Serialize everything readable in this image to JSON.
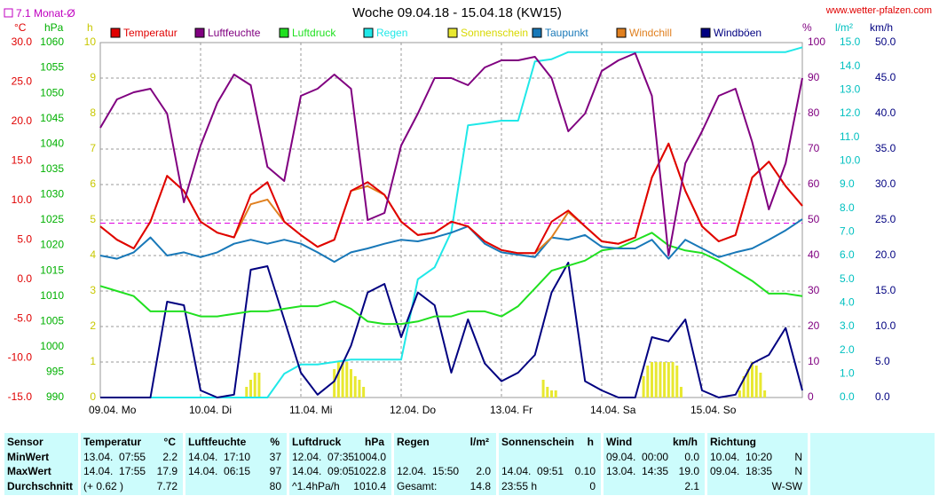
{
  "chart_data": {
    "type": "line",
    "title": "Woche 09.04.18 - 15.04.18 (KW15)",
    "source": "www.wetter-pfalzen.com",
    "monthly_average": {
      "value": 7.1,
      "label": "7.1 Monat-Ø",
      "color": "#e000e0",
      "axis": 0
    },
    "xlim": [
      0,
      168
    ],
    "xticks": [
      {
        "value": 0,
        "label": "09.04. Mo"
      },
      {
        "value": 24,
        "label": "10.04. Di"
      },
      {
        "value": 48,
        "label": "11.04. Mi"
      },
      {
        "value": 72,
        "label": "12.04. Do"
      },
      {
        "value": 96,
        "label": "13.04. Fr"
      },
      {
        "value": 120,
        "label": "14.04. Sa"
      },
      {
        "value": 144,
        "label": "15.04. So"
      }
    ],
    "axes": [
      {
        "unit": "°C",
        "side": "left",
        "color": "#e00000",
        "lim": [
          -15,
          30
        ],
        "ticks": [
          {
            "value": -15,
            "label": "-15.0"
          },
          {
            "value": -10,
            "label": "-10.0"
          },
          {
            "value": -5,
            "label": "-5.0"
          },
          {
            "value": 0,
            "label": "0.0"
          },
          {
            "value": 5,
            "label": "5.0"
          },
          {
            "value": 10,
            "label": "10.0"
          },
          {
            "value": 15,
            "label": "15.0"
          },
          {
            "value": 20,
            "label": "20.0"
          },
          {
            "value": 25,
            "label": "25.0"
          },
          {
            "value": 30,
            "label": "30.0"
          }
        ]
      },
      {
        "unit": "hPa",
        "side": "left",
        "color": "#00b000",
        "lim": [
          990,
          1060
        ],
        "ticks": [
          990,
          995,
          1000,
          1005,
          1010,
          1015,
          1020,
          1025,
          1030,
          1035,
          1040,
          1045,
          1050,
          1055,
          1060
        ]
      },
      {
        "unit": "h",
        "side": "left",
        "color": "#c8c800",
        "lim": [
          0,
          10
        ],
        "ticks": [
          0,
          1,
          2,
          3,
          4,
          5,
          6,
          7,
          8,
          9,
          10
        ]
      },
      {
        "unit": "%",
        "side": "right",
        "color": "#800080",
        "grid": true,
        "lim": [
          0,
          100
        ],
        "ticks": [
          0,
          10,
          20,
          30,
          40,
          50,
          60,
          70,
          80,
          90,
          100
        ]
      },
      {
        "unit": "l/m²",
        "side": "right",
        "color": "#00c0c0",
        "lim": [
          0,
          15
        ],
        "ticks": [
          {
            "value": 0,
            "label": "0.0"
          },
          {
            "value": 1,
            "label": "1.0"
          },
          {
            "value": 2,
            "label": "2.0"
          },
          {
            "value": 3,
            "label": "3.0"
          },
          {
            "value": 4,
            "label": "4.0"
          },
          {
            "value": 5,
            "label": "5.0"
          },
          {
            "value": 6,
            "label": "6.0"
          },
          {
            "value": 7,
            "label": "7.0"
          },
          {
            "value": 8,
            "label": "8.0"
          },
          {
            "value": 9,
            "label": "9.0"
          },
          {
            "value": 10,
            "label": "10.0"
          },
          {
            "value": 11,
            "label": "11.0"
          },
          {
            "value": 12,
            "label": "12.0"
          },
          {
            "value": 13,
            "label": "13.0"
          },
          {
            "value": 14,
            "label": "14.0"
          },
          {
            "value": 15,
            "label": "15.0"
          }
        ]
      },
      {
        "unit": "km/h",
        "side": "right",
        "color": "#000080",
        "lim": [
          0,
          50
        ],
        "ticks": [
          {
            "value": 0,
            "label": "0.0"
          },
          {
            "value": 5,
            "label": "5.0"
          },
          {
            "value": 10,
            "label": "10.0"
          },
          {
            "value": 15,
            "label": "15.0"
          },
          {
            "value": 20,
            "label": "20.0"
          },
          {
            "value": 25,
            "label": "25.0"
          },
          {
            "value": 30,
            "label": "30.0"
          },
          {
            "value": 35,
            "label": "35.0"
          },
          {
            "value": 40,
            "label": "40.0"
          },
          {
            "value": 45,
            "label": "45.0"
          },
          {
            "value": 50,
            "label": "50.0"
          }
        ]
      }
    ],
    "x": [
      0,
      4,
      8,
      12,
      16,
      20,
      24,
      28,
      32,
      36,
      40,
      44,
      48,
      52,
      56,
      60,
      64,
      68,
      72,
      76,
      80,
      84,
      88,
      92,
      96,
      100,
      104,
      108,
      112,
      116,
      120,
      124,
      128,
      132,
      136,
      140,
      144,
      148,
      152,
      156,
      160,
      164,
      168
    ],
    "series": [
      {
        "name": "Temperatur",
        "color": "#e00000",
        "axis": 0,
        "values": [
          6.7,
          5.0,
          3.9,
          7.3,
          13.1,
          11.2,
          7.3,
          5.9,
          5.3,
          10.7,
          12.3,
          7.3,
          5.6,
          4.1,
          5.0,
          11.2,
          12.3,
          10.7,
          7.3,
          5.6,
          5.9,
          7.3,
          6.7,
          4.8,
          3.7,
          3.3,
          3.3,
          7.3,
          8.7,
          6.7,
          4.8,
          4.5,
          5.3,
          12.9,
          17.2,
          11.2,
          6.7,
          4.8,
          5.6,
          12.9,
          14.9,
          11.8,
          9.3
        ]
      },
      {
        "name": "Luftfeuchte",
        "color": "#800080",
        "axis": 3,
        "values": [
          76,
          84,
          86,
          87,
          80,
          55,
          71,
          83,
          91,
          88,
          65,
          61,
          85,
          87,
          91,
          87,
          50,
          52,
          71,
          80,
          90,
          90,
          88,
          93,
          95,
          95,
          96,
          90,
          75,
          80,
          92,
          95,
          97,
          85,
          40,
          66,
          75,
          85,
          87,
          72,
          53,
          66,
          90
        ]
      },
      {
        "name": "Luftdruck",
        "color": "#20e020",
        "axis": 1,
        "values": [
          1012,
          1011,
          1010,
          1007,
          1007,
          1007,
          1006,
          1006,
          1006.5,
          1007,
          1007,
          1007.5,
          1008,
          1008,
          1009,
          1007.5,
          1005,
          1004.5,
          1004.5,
          1005,
          1006,
          1006,
          1007,
          1007,
          1006,
          1008,
          1011.5,
          1015,
          1016,
          1017,
          1019,
          1019.5,
          1021,
          1022.5,
          1020,
          1019,
          1018.5,
          1017,
          1015,
          1013,
          1010.5,
          1010.5,
          1010
        ]
      },
      {
        "name": "Regen",
        "color": "#20e8e8",
        "axis": 4,
        "values": [
          0,
          0,
          0,
          0,
          0,
          0,
          0,
          0,
          0,
          0,
          0,
          1.0,
          1.4,
          1.4,
          1.5,
          1.6,
          1.6,
          1.6,
          1.6,
          5.0,
          5.5,
          7.0,
          11.5,
          11.6,
          11.7,
          11.7,
          14.2,
          14.3,
          14.6,
          14.6,
          14.6,
          14.6,
          14.6,
          14.6,
          14.6,
          14.6,
          14.6,
          14.6,
          14.6,
          14.6,
          14.6,
          14.6,
          14.8
        ]
      },
      {
        "name": "Sonnenschein",
        "color": "#e8e830",
        "axis": 2,
        "type": "bar",
        "x": [
          35,
          36,
          37,
          38,
          56,
          57,
          58,
          59,
          60,
          61,
          62,
          63,
          106,
          107,
          108,
          109,
          130,
          131,
          132,
          133,
          134,
          135,
          136,
          137,
          138,
          139,
          153,
          154,
          155,
          156,
          157,
          158,
          159
        ],
        "values": [
          0.3,
          0.5,
          0.7,
          0.7,
          0.8,
          1.0,
          1.0,
          1.0,
          0.8,
          0.6,
          0.5,
          0.3,
          0.5,
          0.3,
          0.2,
          0.2,
          0.6,
          0.9,
          1.0,
          1.0,
          1.0,
          1.0,
          1.0,
          1.0,
          0.9,
          0.3,
          0.2,
          0.6,
          0.8,
          1.0,
          0.9,
          0.7,
          0.2
        ]
      },
      {
        "name": "Taupunkt",
        "color": "#1878b8",
        "axis": 0,
        "values": [
          3.0,
          2.6,
          3.4,
          5.3,
          3.0,
          3.4,
          2.8,
          3.4,
          4.5,
          5.0,
          4.5,
          5.0,
          4.5,
          3.4,
          2.2,
          3.4,
          3.9,
          4.5,
          5.0,
          4.8,
          5.3,
          5.9,
          6.7,
          4.5,
          3.4,
          3.1,
          2.8,
          5.3,
          5.0,
          5.6,
          4.1,
          3.9,
          3.9,
          5.0,
          2.6,
          5.0,
          3.9,
          2.8,
          3.4,
          3.9,
          5.0,
          6.2,
          7.6
        ]
      },
      {
        "name": "Windchill",
        "color": "#e08020",
        "axis": 0,
        "values": [
          6.7,
          5.0,
          3.9,
          7.3,
          13.1,
          11.2,
          7.3,
          5.9,
          5.3,
          9.5,
          10.1,
          7.3,
          5.6,
          4.1,
          5.0,
          11.2,
          11.8,
          10.7,
          7.3,
          5.6,
          5.9,
          7.3,
          6.7,
          4.8,
          3.7,
          3.3,
          3.3,
          5.3,
          8.5,
          6.7,
          4.8,
          4.5,
          5.3,
          12.9,
          17.2,
          11.2,
          6.7,
          4.8,
          5.6,
          12.9,
          14.9,
          11.8,
          9.3
        ]
      },
      {
        "name": "Windböen",
        "color": "#000080",
        "axis": 5,
        "values": [
          0,
          0,
          0,
          0,
          13.5,
          13,
          1,
          0,
          0.4,
          18,
          18.5,
          11,
          3.5,
          0.4,
          2.3,
          7.3,
          14.8,
          16,
          8.5,
          14.8,
          13,
          3.5,
          11,
          4.8,
          2.3,
          3.5,
          6,
          14.8,
          19.0,
          2.3,
          1,
          0,
          0,
          8.5,
          7.9,
          11,
          1,
          0,
          0.4,
          4.8,
          6,
          9.8,
          1
        ]
      }
    ]
  },
  "table": {
    "columns": [
      {
        "name": "Sensor"
      },
      {
        "name": "Temperatur",
        "unit": "°C"
      },
      {
        "name": "Luftfeuchte",
        "unit": "%"
      },
      {
        "name": "Luftdruck",
        "unit": "hPa"
      },
      {
        "name": "Regen",
        "unit": "l/m²"
      },
      {
        "name": "Sonnenschein",
        "unit": "h"
      },
      {
        "name": "Wind",
        "unit": "km/h"
      },
      {
        "name": "Richtung"
      }
    ],
    "rows": [
      {
        "label": "MinWert",
        "cells": [
          {
            "time": "13.04.  07:55",
            "value": "2.2"
          },
          {
            "time": "14.04.  17:10",
            "value": "37"
          },
          {
            "time": "12.04.  07:35",
            "value": "1004.0"
          },
          null,
          null,
          {
            "time": "09.04.  00:00",
            "value": "0.0"
          },
          {
            "time": "10.04.  10:20",
            "value": "N"
          }
        ]
      },
      {
        "label": "MaxWert",
        "cells": [
          {
            "time": "14.04.  17:55",
            "value": "17.9"
          },
          {
            "time": "14.04.  06:15",
            "value": "97"
          },
          {
            "time": "14.04.  09:05",
            "value": "1022.8"
          },
          {
            "time": "12.04.  15:50",
            "value": "2.0"
          },
          {
            "time": "14.04.  09:51",
            "value": "0.10"
          },
          {
            "time": "13.04.  14:35",
            "value": "19.0"
          },
          {
            "time": "09.04.  18:35",
            "value": "N"
          }
        ]
      },
      {
        "label": "Durchschnitt",
        "cells": [
          {
            "time": "(+ 0.62 )",
            "value": "7.72"
          },
          {
            "value": "80"
          },
          {
            "time": "^1.4hPa/h",
            "value": "1010.4"
          },
          {
            "time": "Gesamt:",
            "value": "14.8"
          },
          {
            "time": "23:55 h",
            "value": "0"
          },
          {
            "value": "2.1"
          },
          {
            "value": "W-SW"
          }
        ]
      }
    ]
  }
}
